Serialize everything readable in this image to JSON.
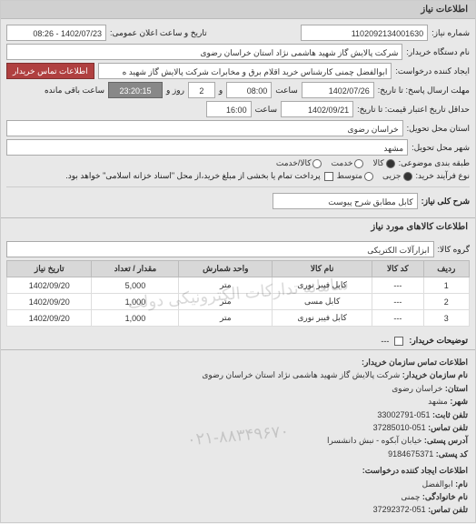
{
  "header": {
    "title": "اطلاعات نیاز"
  },
  "form": {
    "need_no_label": "شماره نیاز:",
    "need_no": "1102092134001630",
    "announce_label": "تاریخ و ساعت اعلان عمومی:",
    "announce_value": "1402/07/23 - 08:26",
    "buyer_label": "نام دستگاه خریدار:",
    "buyer_value": "شرکت پالایش گاز شهید هاشمی نژاد   استان خراسان رضوی",
    "requester_label": "ایجاد کننده درخواست:",
    "requester_value": "ابوالفضل چمنی کارشناس خرید اقلام برق و مخابرات شرکت پالایش گاز شهید ه",
    "buyer_contact_btn": "اطلاعات تماس خریدار",
    "deadline_label": "مهلت ارسال پاسخ: تا تاریخ:",
    "deadline_date": "1402/07/26",
    "time_label": "ساعت",
    "deadline_time": "08:00",
    "and_label": "و",
    "days_value": "2",
    "days_label": "روز و",
    "remain_time": "23:20:15",
    "remain_label": "ساعت باقی مانده",
    "credit_label": "حداقل تاریخ اعتبار قیمت: تا تاریخ:",
    "credit_date": "1402/09/21",
    "credit_time": "16:00",
    "province_label": "استان محل تحویل:",
    "province_value": "خراسان رضوی",
    "city_label": "شهر محل تحویل:",
    "city_value": "مشهد",
    "category_label": "طبقه بندی موضوعی:",
    "radio_goods": "کالا",
    "radio_service": "خدمت",
    "radio_goods_service": "کالا/خدمت",
    "process_label": "نوع فرآیند خرید:",
    "radio_small": "جزیی",
    "radio_medium": "متوسط",
    "process_note": "پرداخت تمام یا بخشی از مبلغ خرید،از محل \"اسناد خزانه اسلامی\" خواهد بود.",
    "desc_label": "شرح کلی نیاز:",
    "desc_value": "کابل مطابق شرح پیوست"
  },
  "items": {
    "title": "اطلاعات کالاهای مورد نیاز",
    "group_label": "گروه کالا:",
    "group_value": "ابزارآلات الکتریکی",
    "columns": [
      "ردیف",
      "کد کالا",
      "نام کالا",
      "واحد شمارش",
      "مقدار / تعداد",
      "تاریخ نیاز"
    ],
    "rows": [
      [
        "1",
        "---",
        "کابل فیبر نوری",
        "متر",
        "5,000",
        "1402/09/20"
      ],
      [
        "2",
        "---",
        "کابل مسی",
        "متر",
        "1,000",
        "1402/09/20"
      ],
      [
        "3",
        "---",
        "کابل فیبر نوری",
        "متر",
        "1,000",
        "1402/09/20"
      ]
    ],
    "explain_label": "توضیحات خریدار:",
    "explain_value": "---",
    "watermark": "سامانه تدارکات الکترونیکی دولت"
  },
  "contact": {
    "title1": "اطلاعات تماس سازمان خریدار:",
    "org_label": "نام سازمان خریدار:",
    "org_value": "شرکت پالایش گاز شهید هاشمی نژاد استان خراسان رضوی",
    "prov_label": "استان:",
    "prov_value": "خراسان رضوی",
    "city_label": "شهر:",
    "city_value": "مشهد",
    "phone_label": "تلفن ثابت:",
    "phone_value": "051-33002791",
    "fax_label": "تلفن تماس:",
    "fax_value": "051-37285010",
    "addr_label": "آدرس پستی:",
    "addr_value": "خیابان آبکوه - نبش دانشسرا",
    "post_label": "کد پستی:",
    "post_value": "9184675371",
    "title2": "اطلاعات ایجاد کننده درخواست:",
    "name_label": "نام:",
    "name_value": "ابوالفضل",
    "lname_label": "نام خانوادگی:",
    "lname_value": "چمنی",
    "cphone_label": "تلفن تماس:",
    "cphone_value": "051-37292372"
  },
  "wm2": "۰۲۱-۸۸۳۴۹۶۷۰"
}
